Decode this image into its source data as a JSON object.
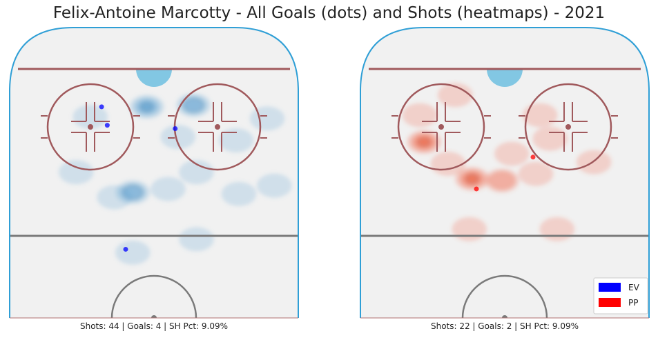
{
  "title": "Felix-Antoine Marcotty - All Goals (dots) and Shots (heatmaps) - 2021",
  "colors": {
    "ev": "#0000ff",
    "pp": "#ff0000",
    "ev_heat": "#5a9fd0",
    "pp_heat": "#f06040",
    "boards": "#2f9fd6",
    "goal_line": "#a0595c",
    "circles": "#a0595c",
    "ice": "#f1f1f1",
    "center_line": "#7a7a7a"
  },
  "legend": [
    {
      "label": "EV",
      "color": "#0000ff"
    },
    {
      "label": "PP",
      "color": "#ff0000"
    }
  ],
  "chart_data": [
    {
      "type": "scatter",
      "name": "EV",
      "caption": "Shots: 44 | Goals: 4 | SH Pct: 9.09%",
      "goals": [
        {
          "x": -37,
          "y": 77
        },
        {
          "x": -33,
          "y": 66
        },
        {
          "x": 15,
          "y": 64
        },
        {
          "x": -20,
          "y": -8
        }
      ],
      "shot_density": [
        {
          "x": -5,
          "y": 77,
          "level": 4
        },
        {
          "x": 28,
          "y": 78,
          "level": 3
        },
        {
          "x": -45,
          "y": 71,
          "level": 1
        },
        {
          "x": 17,
          "y": 59,
          "level": 1
        },
        {
          "x": -15,
          "y": 26,
          "level": 3
        },
        {
          "x": 30,
          "y": 38,
          "level": 1
        },
        {
          "x": -28,
          "y": 23,
          "level": 1
        },
        {
          "x": -55,
          "y": 38,
          "level": 1
        },
        {
          "x": 10,
          "y": 28,
          "level": 1
        },
        {
          "x": 60,
          "y": 25,
          "level": 1
        },
        {
          "x": 58,
          "y": 57,
          "level": 1
        },
        {
          "x": 80,
          "y": 70,
          "level": 1
        },
        {
          "x": 85,
          "y": 30,
          "level": 1
        },
        {
          "x": 30,
          "y": -2,
          "level": 1
        },
        {
          "x": -15,
          "y": -10,
          "level": 1
        }
      ]
    },
    {
      "type": "scatter",
      "name": "PP",
      "caption": "Shots: 22 | Goals: 2 | SH Pct: 9.09%",
      "goals": [
        {
          "x": 20,
          "y": 47
        },
        {
          "x": -20,
          "y": 28
        }
      ],
      "shot_density": [
        {
          "x": -57,
          "y": 56,
          "level": 4
        },
        {
          "x": -23,
          "y": 34,
          "level": 4
        },
        {
          "x": -2,
          "y": 33,
          "level": 2
        },
        {
          "x": -40,
          "y": 43,
          "level": 1
        },
        {
          "x": -60,
          "y": 72,
          "level": 1
        },
        {
          "x": -35,
          "y": 84,
          "level": 1
        },
        {
          "x": 25,
          "y": 72,
          "level": 1
        },
        {
          "x": 32,
          "y": 58,
          "level": 1
        },
        {
          "x": 5,
          "y": 49,
          "level": 1
        },
        {
          "x": 22,
          "y": 37,
          "level": 1
        },
        {
          "x": 63,
          "y": 44,
          "level": 1
        },
        {
          "x": -25,
          "y": 4,
          "level": 1
        },
        {
          "x": 37,
          "y": 4,
          "level": 1
        }
      ]
    }
  ]
}
